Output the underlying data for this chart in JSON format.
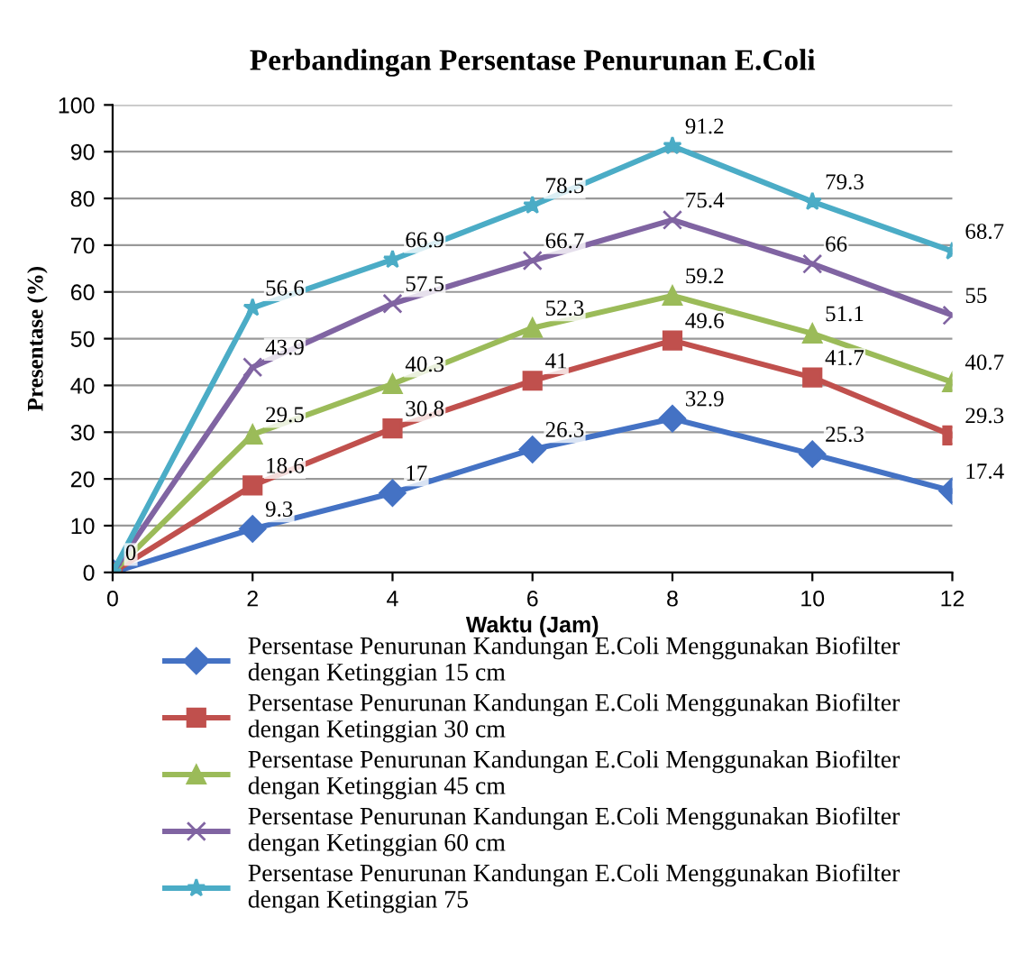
{
  "chart_data": {
    "type": "line",
    "title": "Perbandingan Persentase Penurunan E.Coli",
    "xlabel": "Waktu (Jam)",
    "ylabel": "Presentase (%)",
    "x": [
      0,
      2,
      4,
      6,
      8,
      10,
      12
    ],
    "series": [
      {
        "name": "Persentase Penurunan Kandungan E.Coli Menggunakan Biofilter\ndengan Ketinggian 15 cm",
        "color": "#4472c4",
        "marker": "diamond",
        "values": [
          0,
          9.3,
          17,
          26.3,
          32.9,
          25.3,
          17.4
        ]
      },
      {
        "name": "Persentase Penurunan Kandungan E.Coli Menggunakan Biofilter\ndengan Ketinggian 30 cm",
        "color": "#c0504d",
        "marker": "square",
        "values": [
          0,
          18.6,
          30.8,
          41,
          49.6,
          41.7,
          29.3
        ],
        "value_labels": [
          null,
          "18.6",
          "30.8",
          "41",
          "49.6",
          "41.7",
          "29.3"
        ]
      },
      {
        "name": "Persentase Penurunan Kandungan E.Coli Menggunakan Biofilter\ndengan Ketinggian 45 cm",
        "color": "#9bbb59",
        "marker": "triangle",
        "values": [
          0,
          29.5,
          40.3,
          52.3,
          59.2,
          51.1,
          40.7
        ],
        "value_labels": [
          null,
          "29.5",
          "40.3",
          "52.3",
          "59.2",
          "51.1",
          "40.7"
        ]
      },
      {
        "name": "Persentase Penurunan Kandungan E.Coli Menggunakan Biofilter\ndengan Ketinggian 60 cm",
        "color": "#8064a2",
        "marker": "cross",
        "values": [
          0,
          43.9,
          57.5,
          66.7,
          75.4,
          66,
          55
        ],
        "value_labels": [
          null,
          "43.9",
          "57.5",
          "66.7",
          "75.4",
          "66",
          "55"
        ]
      },
      {
        "name": "Persentase Penurunan Kandungan E.Coli Menggunakan Biofilter\ndengan Ketinggian 75",
        "color": "#4bacc6",
        "marker": "star",
        "values": [
          0,
          56.6,
          66.9,
          78.5,
          91.2,
          79.3,
          68.7
        ],
        "value_labels": [
          null,
          "56.6",
          "66.9",
          "78.5",
          "91.2",
          "79.3",
          "68.7"
        ]
      }
    ],
    "xlim": [
      0,
      12
    ],
    "xticks": [
      0,
      2,
      4,
      6,
      8,
      10,
      12
    ],
    "ylim": [
      0,
      100
    ],
    "yticks": [
      0,
      10,
      20,
      30,
      40,
      50,
      60,
      70,
      80,
      90,
      100
    ],
    "grid": "y",
    "legend": "bottom",
    "data_labels": true
  }
}
